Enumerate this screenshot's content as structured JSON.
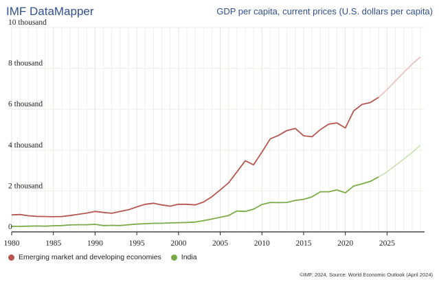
{
  "header": {
    "brand": "IMF DataMapper",
    "subtitle": "GDP per capita, current prices (U.S. dollars per capita)"
  },
  "footer": {
    "source": "©IMF, 2024, Source: World Economic Outlook (April 2024)"
  },
  "colors": {
    "emerging": "#b85450",
    "emerging_projection": "#e6bcbb",
    "india": "#78ab46",
    "india_projection": "#c9e0b0",
    "grid": "#f0eee4",
    "axis": "#222222"
  },
  "chart_data": {
    "type": "line",
    "title": "GDP per capita, current prices (U.S. dollars per capita)",
    "xlabel": "",
    "ylabel": "",
    "xlim": [
      1980,
      2029.5
    ],
    "ylim": [
      0,
      10000
    ],
    "grid": true,
    "legend_position": "bottom-left",
    "y_ticks": [
      {
        "value": 0,
        "label": "0"
      },
      {
        "value": 2000,
        "label": "2 thousand"
      },
      {
        "value": 4000,
        "label": "4 thousand"
      },
      {
        "value": 6000,
        "label": "6 thousand"
      },
      {
        "value": 8000,
        "label": "8 thousand"
      },
      {
        "value": 10000,
        "label": "10 thousand"
      }
    ],
    "x_ticks": [
      {
        "value": 1980,
        "label": "1980"
      },
      {
        "value": 1985,
        "label": "1985"
      },
      {
        "value": 1990,
        "label": "1990"
      },
      {
        "value": 1995,
        "label": "1995"
      },
      {
        "value": 2000,
        "label": "2000"
      },
      {
        "value": 2005,
        "label": "2005"
      },
      {
        "value": 2010,
        "label": "2010"
      },
      {
        "value": 2015,
        "label": "2015"
      },
      {
        "value": 2020,
        "label": "2020"
      },
      {
        "value": 2025,
        "label": "2025"
      }
    ],
    "projection_start": 2024,
    "series": [
      {
        "name": "Emerging market and developing economies",
        "key": "emerging",
        "x": [
          1980,
          1981,
          1982,
          1983,
          1984,
          1985,
          1986,
          1987,
          1988,
          1989,
          1990,
          1991,
          1992,
          1993,
          1994,
          1995,
          1996,
          1997,
          1998,
          1999,
          2000,
          2001,
          2002,
          2003,
          2004,
          2005,
          2006,
          2007,
          2008,
          2009,
          2010,
          2011,
          2012,
          2013,
          2014,
          2015,
          2016,
          2017,
          2018,
          2019,
          2020,
          2021,
          2022,
          2023,
          2024,
          2025,
          2026,
          2027,
          2028,
          2029
        ],
        "values": [
          830,
          850,
          790,
          760,
          750,
          740,
          750,
          800,
          860,
          920,
          1000,
          950,
          910,
          1000,
          1080,
          1220,
          1350,
          1400,
          1320,
          1260,
          1350,
          1350,
          1320,
          1460,
          1720,
          2050,
          2400,
          2930,
          3480,
          3280,
          3900,
          4550,
          4720,
          4960,
          5060,
          4700,
          4650,
          5000,
          5270,
          5330,
          5080,
          5920,
          6230,
          6330,
          6580,
          6960,
          7380,
          7800,
          8200,
          8560
        ]
      },
      {
        "name": "India",
        "key": "india",
        "x": [
          1980,
          1981,
          1982,
          1983,
          1984,
          1985,
          1986,
          1987,
          1988,
          1989,
          1990,
          1991,
          1992,
          1993,
          1994,
          1995,
          1996,
          1997,
          1998,
          1999,
          2000,
          2001,
          2002,
          2003,
          2004,
          2005,
          2006,
          2007,
          2008,
          2009,
          2010,
          2011,
          2012,
          2013,
          2014,
          2015,
          2016,
          2017,
          2018,
          2019,
          2020,
          2021,
          2022,
          2023,
          2024,
          2025,
          2026,
          2027,
          2028,
          2029
        ],
        "values": [
          270,
          270,
          280,
          290,
          280,
          300,
          310,
          340,
          350,
          350,
          370,
          310,
          320,
          310,
          350,
          380,
          400,
          420,
          420,
          440,
          450,
          460,
          480,
          550,
          630,
          710,
          800,
          1020,
          1000,
          1110,
          1340,
          1440,
          1430,
          1440,
          1540,
          1590,
          1710,
          1960,
          1960,
          2050,
          1910,
          2240,
          2350,
          2470,
          2690,
          2940,
          3250,
          3560,
          3880,
          4240
        ]
      }
    ]
  }
}
